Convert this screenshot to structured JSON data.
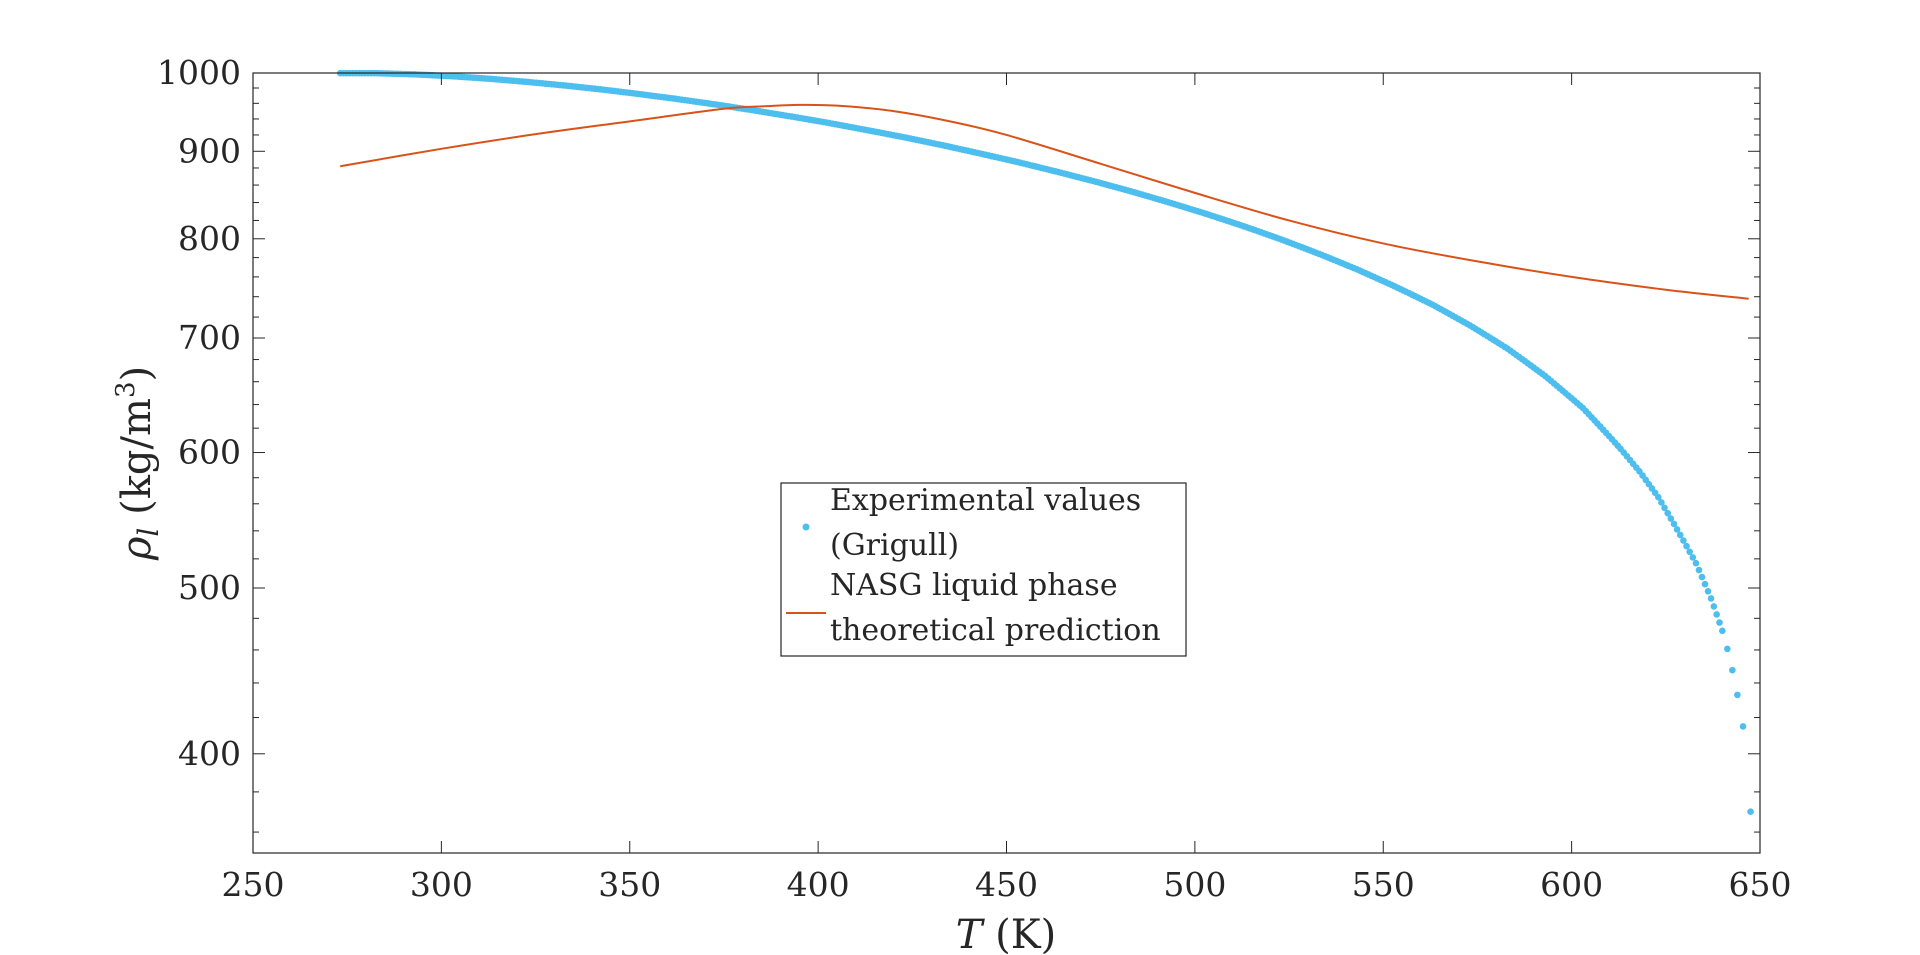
{
  "chart_data": {
    "type": "scatter",
    "xlabel": "T (K)",
    "ylabel": "ρl (kg/m3)",
    "xlim": [
      250,
      650
    ],
    "ylim": [
      350,
      1000
    ],
    "yscale": "log",
    "x_ticks": [
      250,
      300,
      350,
      400,
      450,
      500,
      550,
      600,
      650
    ],
    "x_tick_labels": [
      "250",
      "300",
      "350",
      "400",
      "450",
      "500",
      "550",
      "600",
      "650"
    ],
    "y_ticks": [
      400,
      500,
      600,
      700,
      800,
      900,
      1000
    ],
    "y_tick_labels": [
      "400",
      "500",
      "600",
      "700",
      "800",
      "900",
      "1000"
    ],
    "grid": false,
    "legend_position": "center",
    "series": [
      {
        "name": "Experimental values (Grigull)",
        "type": "scatter",
        "color": "#4DBEEE",
        "points": [
          [
            273.15,
            999.8
          ],
          [
            283,
            999.7
          ],
          [
            293,
            998.2
          ],
          [
            303,
            995.6
          ],
          [
            313,
            992.2
          ],
          [
            323,
            988.0
          ],
          [
            333,
            983.2
          ],
          [
            343,
            977.8
          ],
          [
            353,
            971.8
          ],
          [
            363,
            965.3
          ],
          [
            373,
            958.4
          ],
          [
            383,
            950.9
          ],
          [
            393,
            943.0
          ],
          [
            403,
            934.8
          ],
          [
            413,
            926.0
          ],
          [
            423,
            917.0
          ],
          [
            433,
            907.4
          ],
          [
            443,
            897.3
          ],
          [
            453,
            887.0
          ],
          [
            463,
            876.0
          ],
          [
            473,
            864.7
          ],
          [
            483,
            852.8
          ],
          [
            493,
            840.3
          ],
          [
            503,
            827.3
          ],
          [
            513,
            813.6
          ],
          [
            523,
            799.2
          ],
          [
            533,
            783.9
          ],
          [
            543,
            767.8
          ],
          [
            553,
            750.5
          ],
          [
            563,
            732.3
          ],
          [
            573,
            712.0
          ],
          [
            583,
            690.0
          ],
          [
            593,
            665.0
          ],
          [
            603,
            637.0
          ],
          [
            613,
            603.0
          ],
          [
            618,
            585.0
          ],
          [
            623,
            565.0
          ],
          [
            628,
            541.0
          ],
          [
            633,
            517.0
          ],
          [
            637,
            493.0
          ],
          [
            640,
            472.0
          ],
          [
            642,
            455.0
          ],
          [
            644,
            433.0
          ],
          [
            645.5,
            415.0
          ],
          [
            646.5,
            400.0
          ],
          [
            647.5,
            370.0
          ],
          [
            647.8,
            350.0
          ]
        ]
      },
      {
        "name": "NASG liquid phase theoretical prediction",
        "type": "line",
        "color": "#D95319",
        "points": [
          [
            273.15,
            882
          ],
          [
            300,
            903
          ],
          [
            325,
            921
          ],
          [
            350,
            937
          ],
          [
            375,
            953
          ],
          [
            385,
            956
          ],
          [
            395,
            958
          ],
          [
            405,
            957
          ],
          [
            420,
            950
          ],
          [
            435,
            937
          ],
          [
            450,
            920
          ],
          [
            475,
            885
          ],
          [
            500,
            851
          ],
          [
            525,
            820
          ],
          [
            550,
            795
          ],
          [
            575,
            776
          ],
          [
            600,
            760
          ],
          [
            625,
            747
          ],
          [
            647,
            738
          ]
        ]
      }
    ]
  }
}
